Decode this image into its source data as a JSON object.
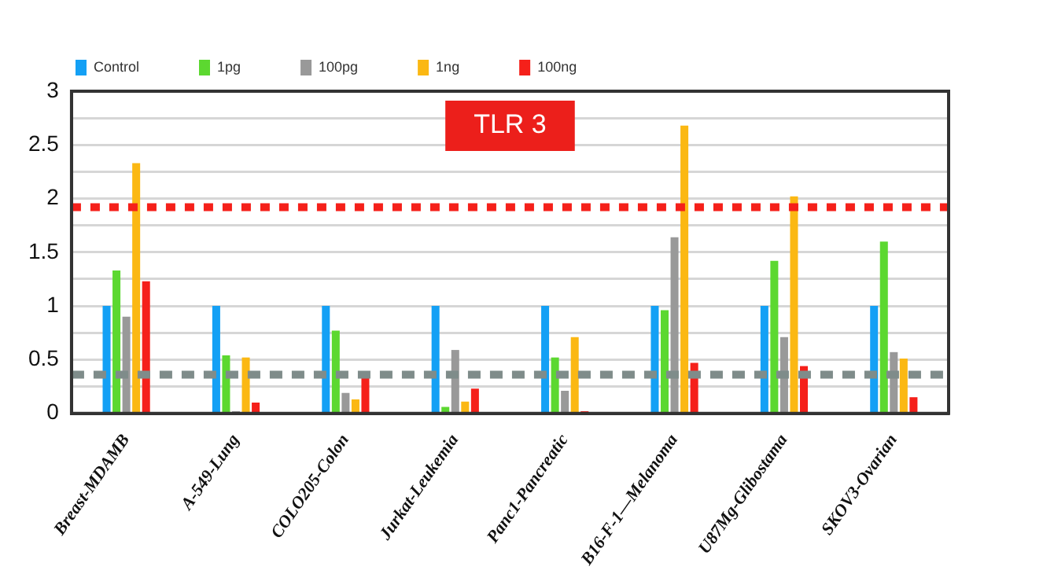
{
  "chart_data": {
    "type": "bar",
    "categories": [
      "Breast-MDAMB",
      "A-549-Lung",
      "COLO205-Colon",
      "Jurkat-Leukemia",
      "Panc1-Pancreatic",
      "B16-F-1—Melanoma",
      "U87Mg-Glibostama",
      "SKOV3-Ovarian"
    ],
    "series": [
      {
        "name": "Control",
        "color": "#14a0f5",
        "values": [
          1,
          1,
          1,
          1,
          1,
          1,
          1,
          1
        ]
      },
      {
        "name": "1pg",
        "color": "#5cd830",
        "values": [
          1.33,
          0.54,
          0.77,
          0.06,
          0.52,
          0.96,
          1.42,
          1.6
        ]
      },
      {
        "name": "100pg",
        "color": "#999999",
        "values": [
          0.9,
          0.02,
          0.19,
          0.59,
          0.21,
          1.64,
          0.71,
          0.57
        ]
      },
      {
        "name": "1ng",
        "color": "#fbb813",
        "values": [
          2.33,
          0.52,
          0.13,
          0.11,
          0.71,
          2.68,
          2.02,
          0.51
        ]
      },
      {
        "name": "100ng",
        "color": "#f5201a",
        "values": [
          1.23,
          0.1,
          0.33,
          0.23,
          0.02,
          0.47,
          0.44,
          0.15
        ]
      }
    ],
    "ylim": [
      0,
      3
    ],
    "yticks": [
      0,
      0.5,
      1,
      1.5,
      2,
      2.5,
      3
    ],
    "grid": "y",
    "legend": "top",
    "ref_lines": [
      {
        "axis": "y",
        "value": 1.92,
        "color": "#f5201a",
        "line_style": "dotted"
      },
      {
        "axis": "y",
        "value": 0.36,
        "color": "#7f8c8a",
        "line_style": "dashed"
      }
    ],
    "annotations": [
      "TLR 3"
    ]
  }
}
